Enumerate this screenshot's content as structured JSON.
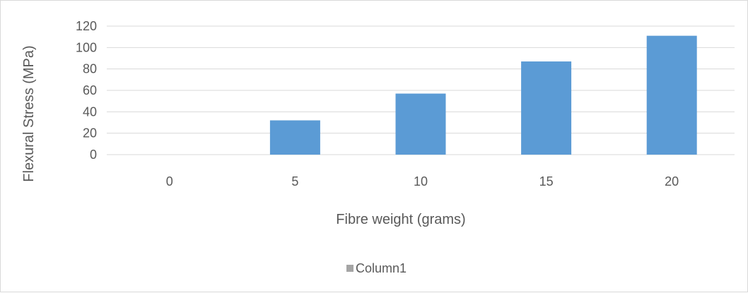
{
  "chart_data": {
    "type": "bar",
    "categories": [
      "0",
      "5",
      "10",
      "15",
      "20"
    ],
    "series": [
      {
        "name": "Column1",
        "values": [
          0,
          32,
          57,
          87,
          111
        ]
      }
    ],
    "xlabel": "Fibre weight (grams)",
    "ylabel": "Flexural Stress (MPa)",
    "ylim": [
      0,
      120
    ],
    "yticks": [
      0,
      20,
      40,
      60,
      80,
      100,
      120
    ],
    "grid": true,
    "legend_position": "bottom",
    "colors": {
      "bar": "#5b9bd5",
      "legend_swatch": "#a5a5a5",
      "grid": "#d9d9d9",
      "text": "#595959"
    }
  }
}
